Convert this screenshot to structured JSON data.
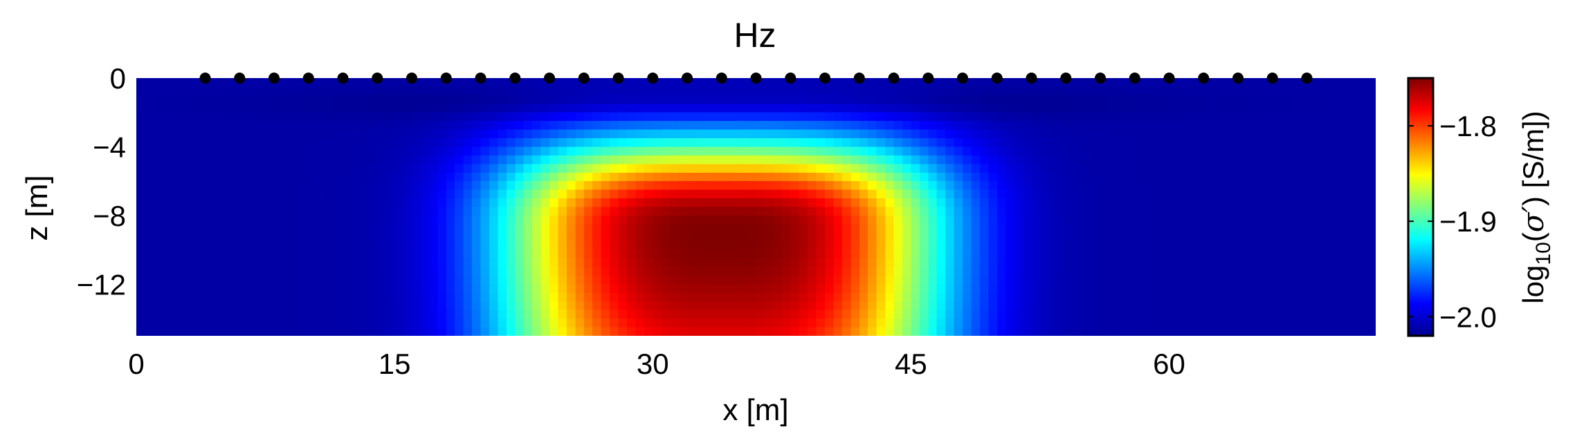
{
  "chart_data": {
    "type": "heatmap",
    "title": "Hz",
    "xlabel": "x [m]",
    "ylabel": "z [m]",
    "colorbar": {
      "label_prefix": "log",
      "label_sub": "10",
      "label_paren_open": "(",
      "label_sigma": "σ",
      "label_prime": "′",
      "label_units": ") [S/m])",
      "range": [
        -2.02,
        -1.75
      ],
      "ticks": [
        -1.8,
        -1.9,
        -2.0
      ],
      "tick_labels": [
        "−1.8",
        "−1.9",
        "−2.0"
      ],
      "colormap": "jet"
    },
    "x_ticks": [
      0,
      15,
      30,
      45,
      60
    ],
    "x_tick_labels": [
      "0",
      "15",
      "30",
      "45",
      "60"
    ],
    "y_ticks": [
      0,
      -4,
      -8,
      -12
    ],
    "y_tick_labels": [
      "0",
      "−4",
      "−8",
      "−12"
    ],
    "xlim": [
      0,
      72
    ],
    "ylim": [
      -15,
      0
    ],
    "field": {
      "background": -2.01,
      "anomaly_center_x": 34,
      "anomaly_center_z": -9,
      "anomaly_peak": -1.75,
      "anomaly_x_extent": [
        22,
        46
      ],
      "anomaly_top_z": -3.5
    },
    "receivers": {
      "marker": "black-dot",
      "z": 0,
      "x": [
        4,
        6,
        8,
        10,
        12,
        14,
        16,
        18,
        20,
        22,
        24,
        26,
        28,
        30,
        32,
        34,
        36,
        38,
        40,
        42,
        44,
        46,
        48,
        50,
        52,
        54,
        56,
        58,
        60,
        62,
        64,
        66,
        68
      ]
    }
  }
}
